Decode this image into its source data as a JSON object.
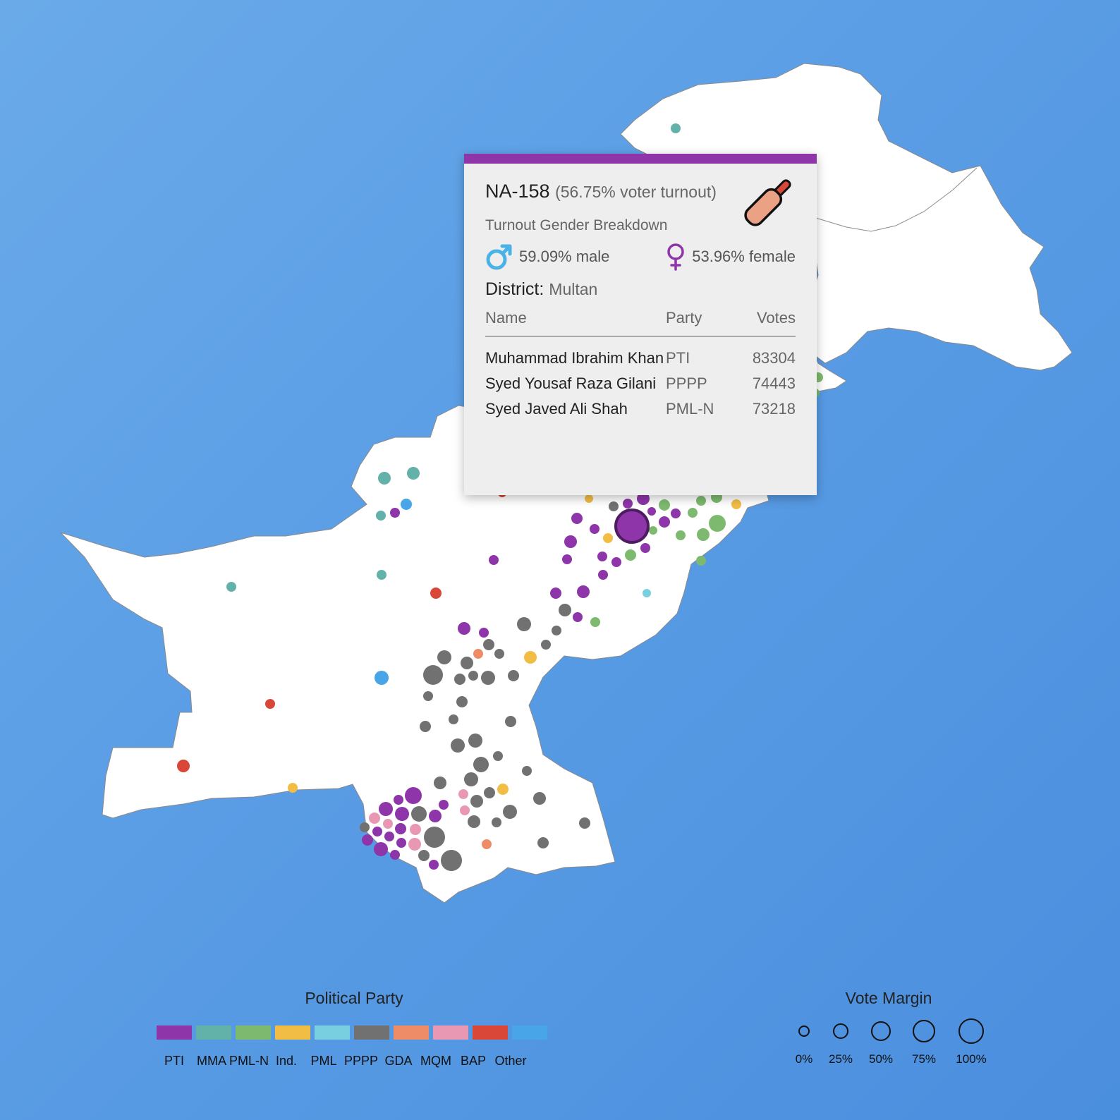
{
  "colors": {
    "background": "#5a9de5",
    "land": "#ffffff",
    "tooltip_accent": "#8e35a9"
  },
  "parties": [
    {
      "key": "PTI",
      "label": "PTI",
      "color": "#8e35a9"
    },
    {
      "key": "MMA",
      "label": "MMA",
      "color": "#63b2a9"
    },
    {
      "key": "PML-N",
      "label": "PML-N",
      "color": "#7dba6f"
    },
    {
      "key": "Ind.",
      "label": "Ind.",
      "color": "#f2bd45"
    },
    {
      "key": "PML",
      "label": "PML",
      "color": "#77cfdf"
    },
    {
      "key": "PPPP",
      "label": "PPPP",
      "color": "#717171"
    },
    {
      "key": "GDA",
      "label": "GDA",
      "color": "#ef8c68"
    },
    {
      "key": "MQM",
      "label": "MQM",
      "color": "#e998b4"
    },
    {
      "key": "BAP",
      "label": "BAP",
      "color": "#d84738"
    },
    {
      "key": "Other",
      "label": "Other",
      "color": "#48a5e8"
    }
  ],
  "legend": {
    "party_title": "Political Party",
    "margin_title": "Vote Margin",
    "margin_levels": [
      "0%",
      "25%",
      "50%",
      "75%",
      "100%"
    ]
  },
  "tooltip": {
    "constituency": "NA-158",
    "turnout": "(56.75% voter turnout)",
    "gender_heading": "Turnout Gender Breakdown",
    "male": "59.09% male",
    "female": "53.96% female",
    "district_label": "District:",
    "district": "Multan",
    "winning_party_icon": "cricket-bat-icon",
    "columns": {
      "name": "Name",
      "party": "Party",
      "votes": "Votes"
    },
    "candidates": [
      {
        "name": "Muhammad Ibrahim Khan",
        "party": "PTI",
        "votes": "83304"
      },
      {
        "name": "Syed Yousaf Raza Gilani",
        "party": "PPPP",
        "votes": "74443"
      },
      {
        "name": "Syed Javed Ali Shah",
        "party": "PML-N",
        "votes": "73218"
      }
    ]
  }
}
